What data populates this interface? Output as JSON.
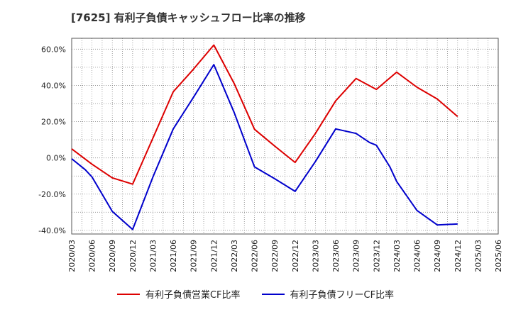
{
  "chart_data": {
    "type": "line",
    "title": "[7625]  有利子負債キャッシュフロー比率の推移",
    "xlabel": "",
    "ylabel": "",
    "x": [
      "2020/03",
      "2020/06",
      "2020/09",
      "2020/12",
      "2021/03",
      "2021/06",
      "2021/09",
      "2021/12",
      "2022/03",
      "2022/06",
      "2022/09",
      "2022/12",
      "2023/03",
      "2023/06",
      "2023/09",
      "2023/12",
      "2024/03",
      "2024/06",
      "2024/09",
      "2024/12",
      "2025/03",
      "2025/06"
    ],
    "yticks": [
      "60.0%",
      "40.0%",
      "20.0%",
      "0.0%",
      "-20.0%",
      "-40.0%"
    ],
    "ytick_values": [
      60,
      40,
      20,
      0,
      -20,
      -40
    ],
    "ylim": [
      -42,
      66
    ],
    "grid": true,
    "legend_position": "bottom",
    "series": [
      {
        "name": "有利子負債営業CF比率",
        "color": "#dd0000",
        "points": [
          [
            "2020/03",
            5
          ],
          [
            "2020/06",
            -3.5
          ],
          [
            "2020/09",
            -11
          ],
          [
            "2020/11",
            -13.3
          ],
          [
            "2020/12",
            -14.5
          ],
          [
            "2021/03",
            11
          ],
          [
            "2021/06",
            36.5
          ],
          [
            "2021/09",
            49
          ],
          [
            "2021/12",
            62.3
          ],
          [
            "2022/03",
            41
          ],
          [
            "2022/06",
            15.8
          ],
          [
            "2022/09",
            6.5
          ],
          [
            "2022/12",
            -2.5
          ],
          [
            "2023/03",
            13.5
          ],
          [
            "2023/06",
            31.5
          ],
          [
            "2023/09",
            43.8
          ],
          [
            "2023/12",
            37.8
          ],
          [
            "2024/03",
            47.3
          ],
          [
            "2024/06",
            39
          ],
          [
            "2024/09",
            32.5
          ],
          [
            "2024/12",
            22.8
          ]
        ]
      },
      {
        "name": "有利子負債フリーCF比率",
        "color": "#0000cc",
        "points": [
          [
            "2020/03",
            -0.5
          ],
          [
            "2020/05",
            -6.5
          ],
          [
            "2020/06",
            -10.5
          ],
          [
            "2020/09",
            -29.5
          ],
          [
            "2020/12",
            -39.5
          ],
          [
            "2021/03",
            -10.5
          ],
          [
            "2021/06",
            16
          ],
          [
            "2021/09",
            33.5
          ],
          [
            "2021/12",
            51.5
          ],
          [
            "2022/03",
            25
          ],
          [
            "2022/06",
            -5
          ],
          [
            "2022/09",
            -11.5
          ],
          [
            "2022/12",
            -18.5
          ],
          [
            "2023/03",
            -2
          ],
          [
            "2023/06",
            16
          ],
          [
            "2023/09",
            13.5
          ],
          [
            "2023/11",
            8.5
          ],
          [
            "2023/12",
            7
          ],
          [
            "2024/02",
            -5
          ],
          [
            "2024/03",
            -13
          ],
          [
            "2024/06",
            -29
          ],
          [
            "2024/09",
            -37
          ],
          [
            "2024/12",
            -36.5
          ]
        ]
      }
    ]
  }
}
